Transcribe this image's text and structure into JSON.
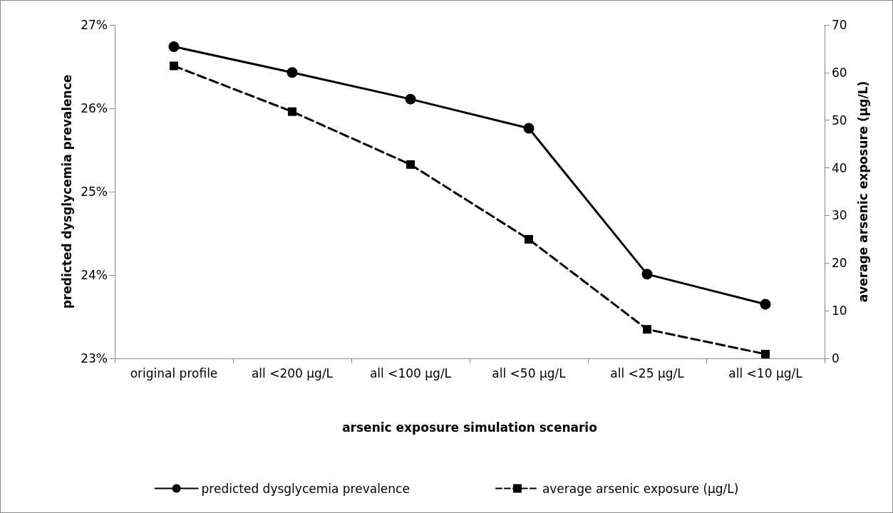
{
  "chart_data": {
    "type": "line",
    "xlabel": "arsenic exposure simulation scenario",
    "ylabel": "predicted dysglycemia prevalence",
    "y2label": "average arsenic exposure (µg/L)",
    "categories": [
      "original profile",
      "all <200 µg/L",
      "all <100 µg/L",
      "all <50 µg/L",
      "all <25 µg/L",
      "all <10 µg/L"
    ],
    "series": [
      {
        "name": "predicted dysglycemia prevalence",
        "color": "#000000",
        "marker": "circle",
        "line_style": "solid",
        "values": [
          26.74,
          26.43,
          26.11,
          25.76,
          24.01,
          23.65
        ]
      },
      {
        "name": "average arsenic exposure (µg/L)",
        "color": "#000000",
        "marker": "square",
        "line_style": "dashed",
        "axis": "y2",
        "values": [
          61.4,
          51.8,
          40.7,
          25.0,
          6.1,
          0.9
        ]
      }
    ],
    "ylim": [
      23,
      27
    ],
    "yticks": [
      {
        "value": 23,
        "label": "23%"
      },
      {
        "value": 24,
        "label": "24%"
      },
      {
        "value": 25,
        "label": "25%"
      },
      {
        "value": 26,
        "label": "26%"
      },
      {
        "value": 27,
        "label": "27%"
      }
    ],
    "y2lim": [
      0,
      70
    ],
    "y2ticks": [
      0,
      10,
      20,
      30,
      40,
      50,
      60,
      70
    ],
    "grid": false,
    "legend": "bottom"
  }
}
